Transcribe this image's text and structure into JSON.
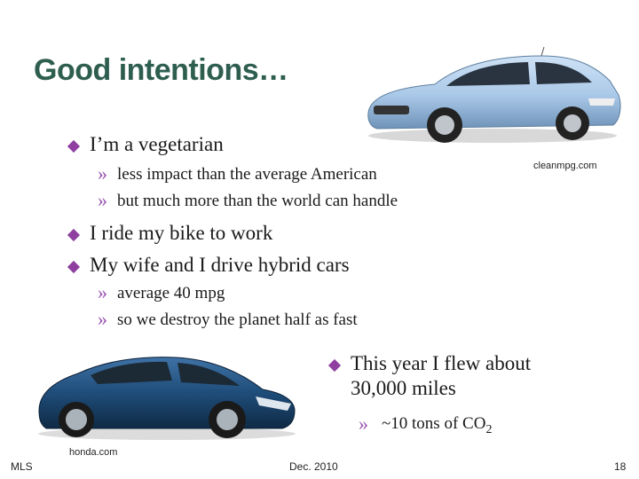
{
  "slide": {
    "title": "Good intentions…",
    "bullets": [
      {
        "text": "I’m a vegetarian",
        "sub": [
          "less impact than the average American",
          "but much more than the world can handle"
        ]
      },
      {
        "text": "I ride my bike to work",
        "sub": []
      },
      {
        "text": "My wife and I drive hybrid cars",
        "sub": [
          "average 40 mpg",
          "so we destroy the planet half as fast"
        ]
      }
    ],
    "flight": {
      "line1": "This year I flew about",
      "line2": "30,000 miles",
      "sub_prefix": "~10 tons of CO",
      "sub_subscript": "2"
    },
    "credits": {
      "top_image": "cleanmpg.com",
      "bottom_image": "honda.com"
    },
    "footer": {
      "left": "MLS",
      "center": "Dec. 2010",
      "page": "18"
    },
    "images": {
      "top_car": {
        "icon": "silver-blue-hybrid-hatchback",
        "color": "#a9c8e8"
      },
      "bottom_car": {
        "icon": "dark-blue-sport-hybrid-coupe",
        "color": "#1f4d7a"
      }
    },
    "colors": {
      "title": "#2e5e4f",
      "bullet": "#8e3fa0",
      "chevron": "#9a55b2"
    }
  }
}
